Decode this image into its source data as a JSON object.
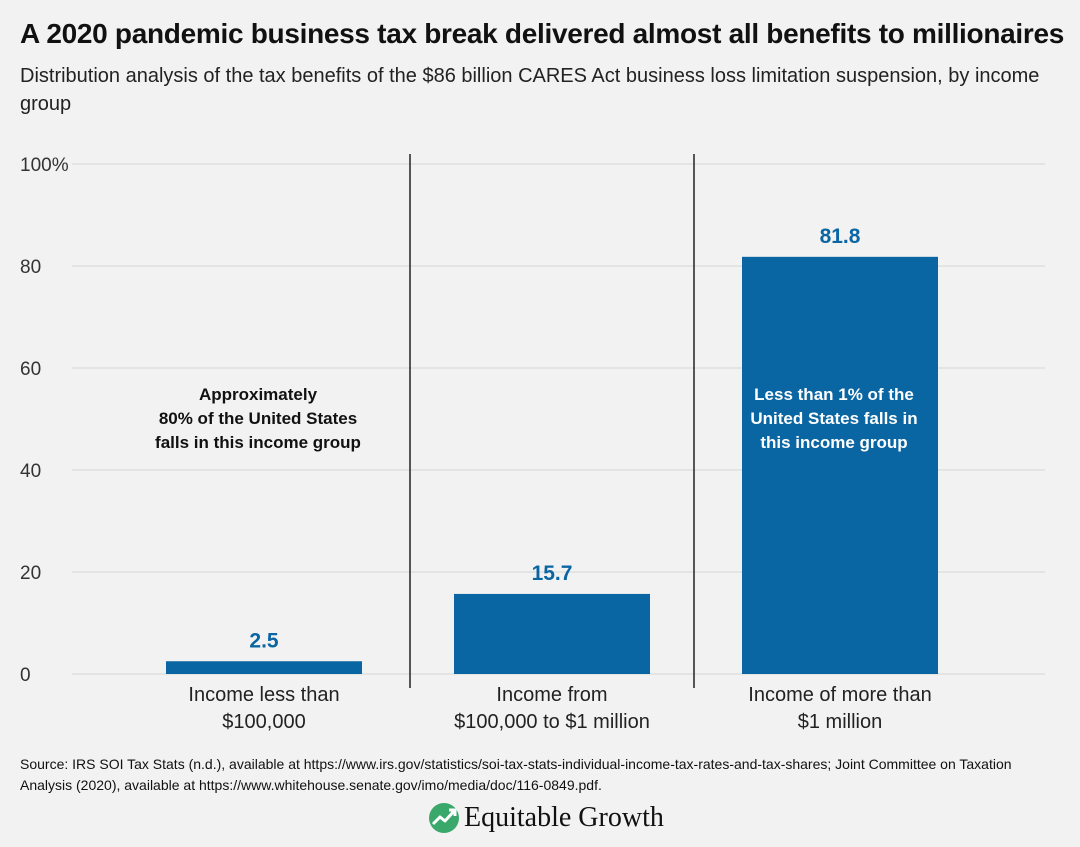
{
  "title": "A 2020 pandemic business tax break delivered almost all benefits to millionaires",
  "subtitle": "Distribution analysis of the tax benefits of the $86 billion CARES Act business loss limitation suspension, by income group",
  "chart_data": {
    "type": "bar",
    "categories": [
      [
        "Income less than",
        "$100,000"
      ],
      [
        "Income from",
        "$100,000 to $1 million"
      ],
      [
        "Income of more than",
        "$1 million"
      ]
    ],
    "values": [
      2.5,
      15.7,
      81.8
    ],
    "value_labels": [
      "2.5",
      "15.7",
      "81.8"
    ],
    "ylim": [
      0,
      100
    ],
    "yticks": [
      0,
      20,
      40,
      60,
      80,
      100
    ],
    "ytick_labels": [
      "0",
      "20",
      "40",
      "60",
      "80",
      "100%"
    ],
    "grid": true,
    "bar_color": "#0a65a3",
    "label_color": "#0a65a3",
    "annotations": [
      {
        "category_index": 0,
        "lines": [
          "Approximately",
          "80% of the United States",
          "falls in this income group"
        ],
        "color": "#111111"
      },
      {
        "category_index": 2,
        "lines": [
          "Less than 1% of the",
          "United States falls in",
          "this income group"
        ],
        "color": "#ffffff"
      }
    ]
  },
  "source": "Source: IRS SOI Tax Stats (n.d.), available at https://www.irs.gov/statistics/soi-tax-stats-individual-income-tax-rates-and-tax-shares; Joint Committee on Taxation Analysis (2020), available at https://www.whitehouse.senate.gov/imo/media/doc/116-0849.pdf.",
  "logo": {
    "text": "Equitable Growth",
    "icon": "growth-chart-logo-icon"
  }
}
